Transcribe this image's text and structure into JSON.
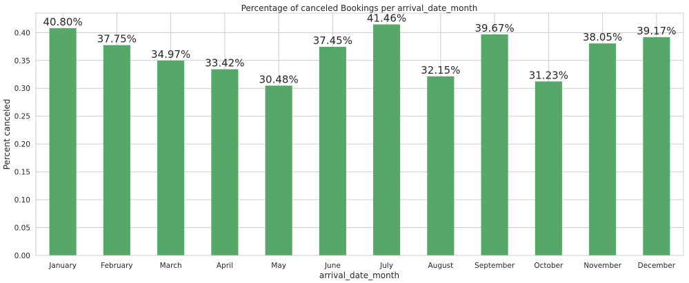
{
  "chart_data": {
    "type": "bar",
    "title": "Percentage of canceled Bookings per arrival_date_month",
    "xlabel": "arrival_date_month",
    "ylabel": "Percent canceled",
    "categories": [
      "January",
      "February",
      "March",
      "April",
      "May",
      "June",
      "July",
      "August",
      "September",
      "October",
      "November",
      "December"
    ],
    "values": [
      0.408,
      0.3775,
      0.3497,
      0.3342,
      0.3048,
      0.3745,
      0.4146,
      0.3215,
      0.3967,
      0.3123,
      0.3805,
      0.3917
    ],
    "data_labels": [
      "40.80%",
      "37.75%",
      "34.97%",
      "33.42%",
      "30.48%",
      "37.45%",
      "41.46%",
      "32.15%",
      "39.67%",
      "31.23%",
      "38.05%",
      "39.17%"
    ],
    "ylim": [
      0,
      0.435
    ],
    "yticks": [
      "0.00",
      "0.05",
      "0.10",
      "0.15",
      "0.20",
      "0.25",
      "0.30",
      "0.35",
      "0.40"
    ],
    "bar_color": "#55a868",
    "grid": true
  }
}
